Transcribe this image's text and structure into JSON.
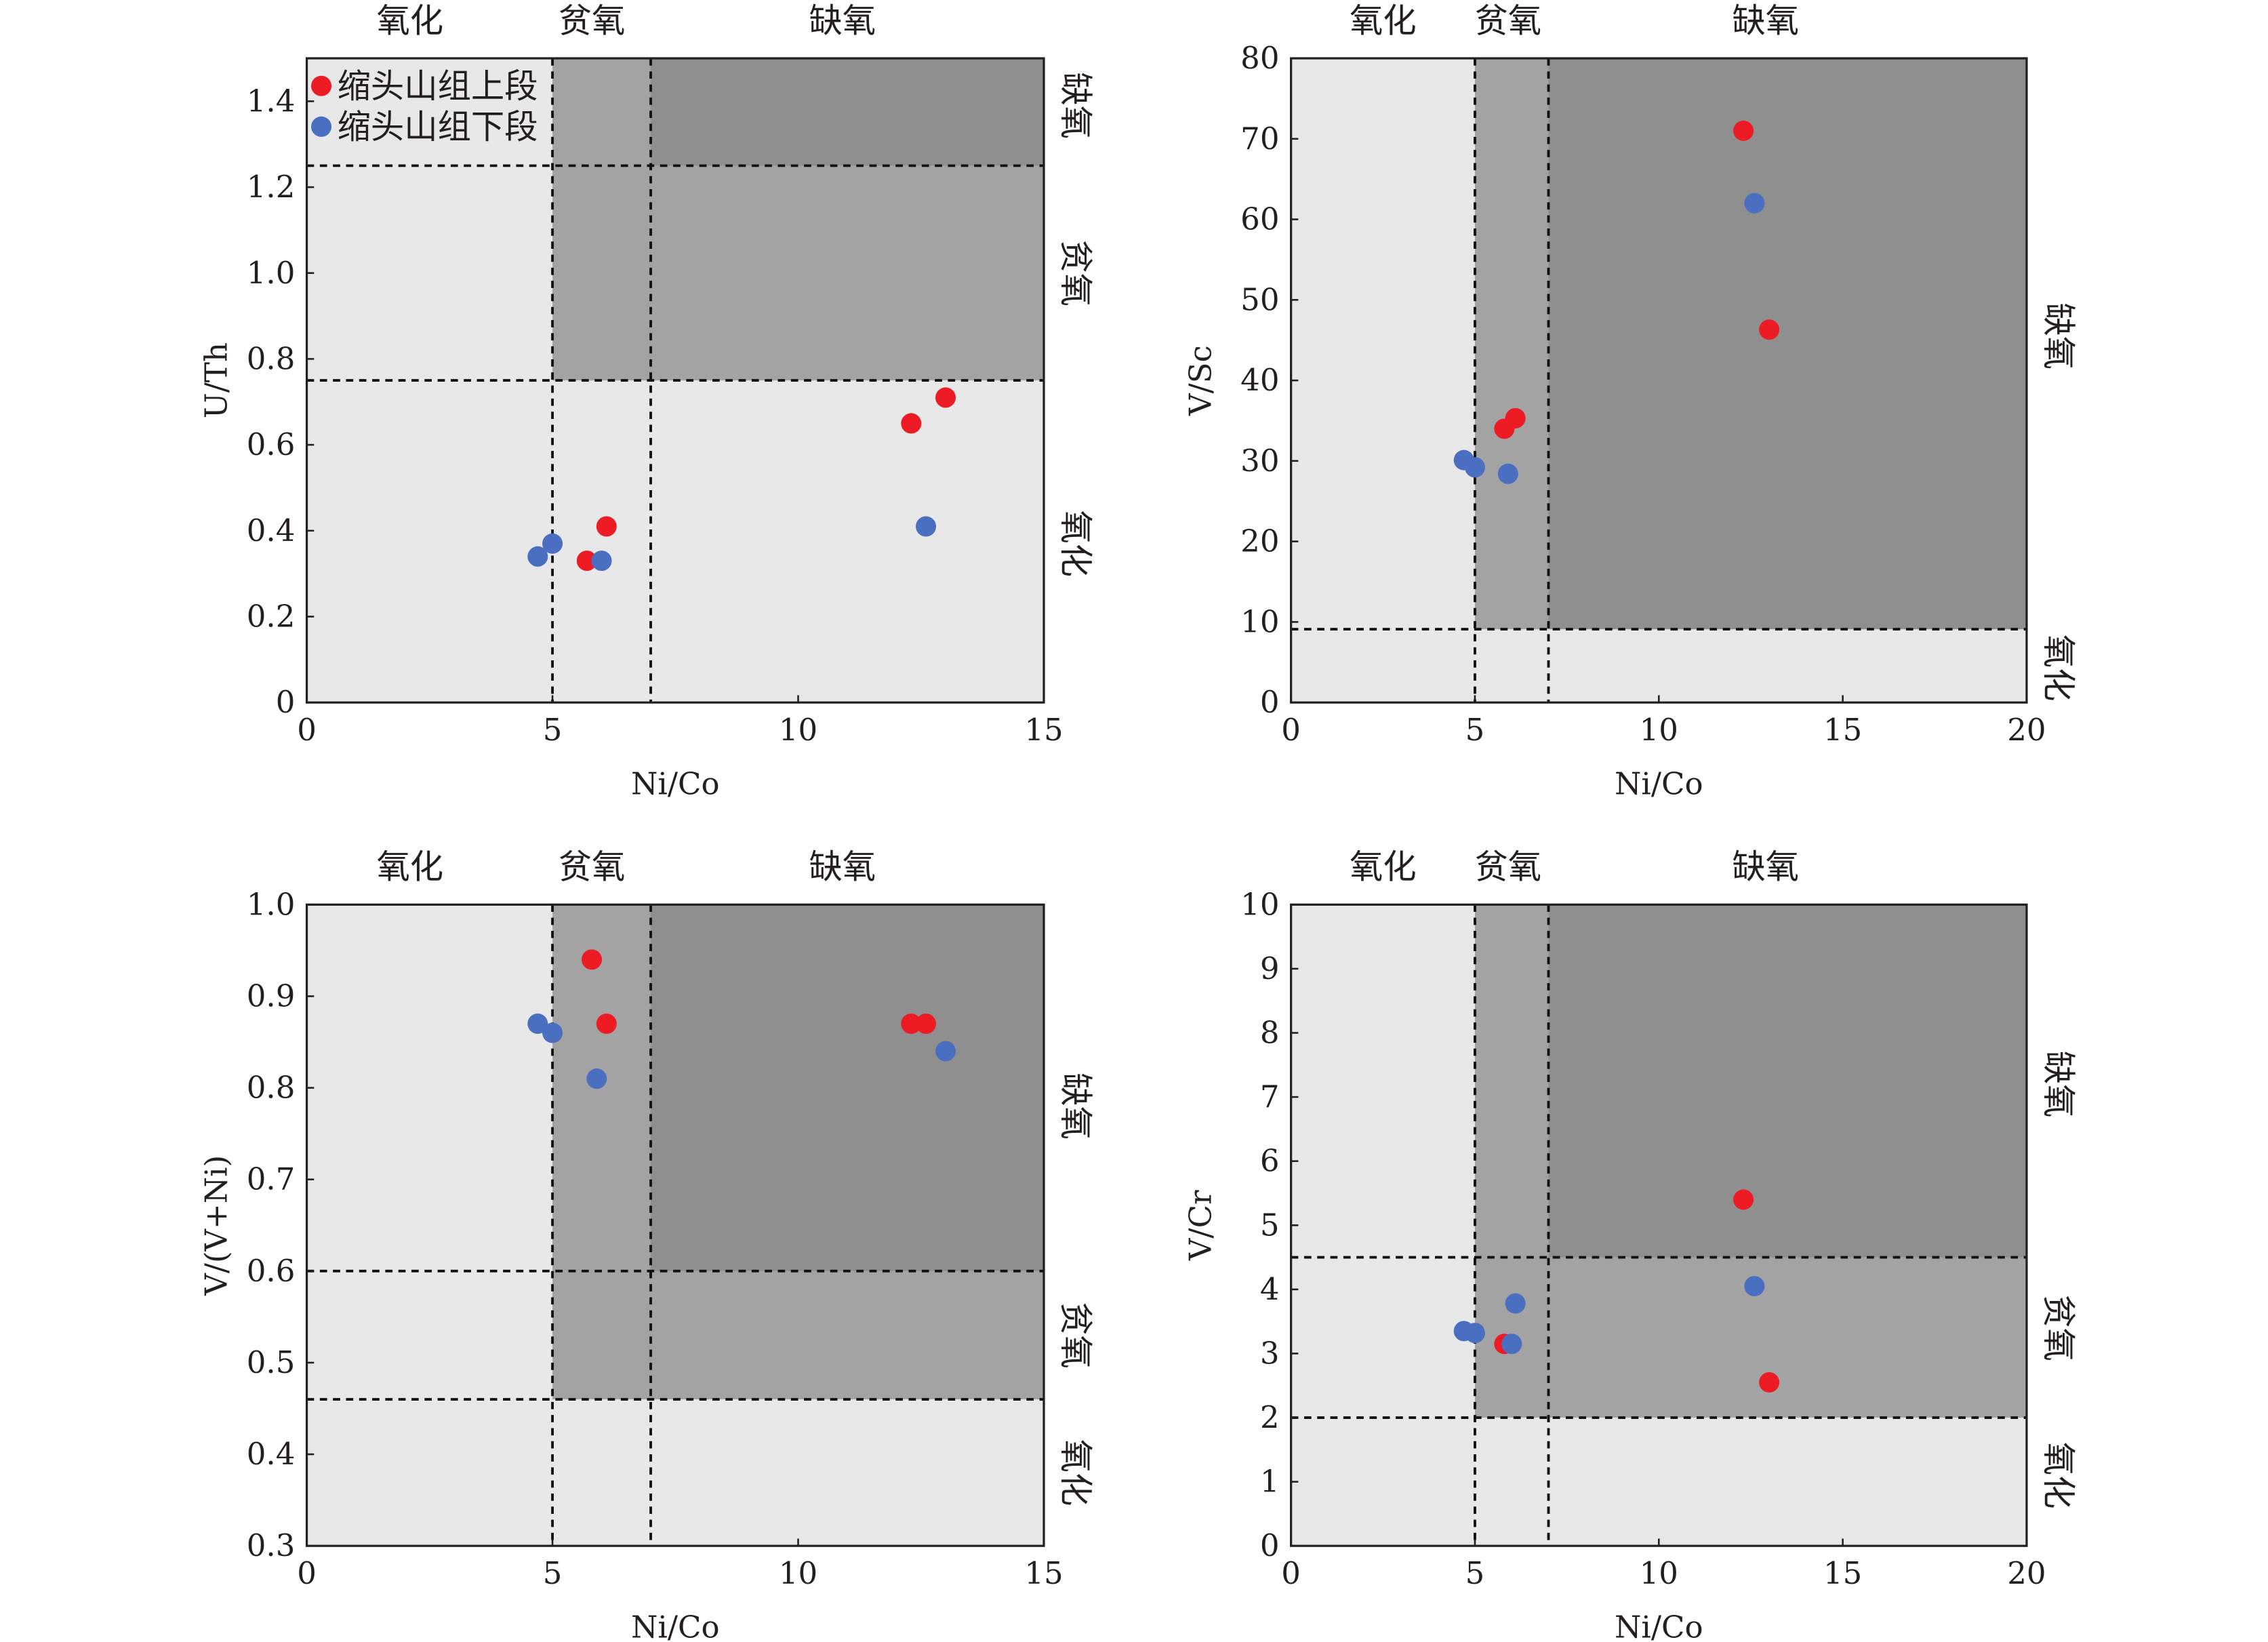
{
  "colors": {
    "light": "#e8e8e8",
    "medium": "#a3a3a3",
    "dark": "#8f8f8f",
    "red": "#ed1c24",
    "blue": "#4a6ec0"
  },
  "legend": [
    {
      "label": "缩头山组上段",
      "color": "#ed1c24"
    },
    {
      "label": "缩头山组下段",
      "color": "#4a6ec0"
    }
  ],
  "chart_data": [
    {
      "type": "scatter",
      "xlabel": "Ni/Co",
      "ylabel": "U/Th",
      "xlim": [
        0,
        15
      ],
      "ylim": [
        0,
        1.5
      ],
      "xticks": [
        0,
        5,
        10,
        15
      ],
      "yticks": [
        0,
        0.2,
        0.4,
        0.6,
        0.8,
        1.0,
        1.2,
        1.4
      ],
      "ytick_labels": [
        "0",
        "0.2",
        "0.4",
        "0.6",
        "0.8",
        "1.0",
        "1.2",
        "1.4"
      ],
      "vlines": [
        5,
        7
      ],
      "hlines": [
        0.75,
        1.25
      ],
      "zones": [
        {
          "x": [
            5,
            15
          ],
          "y": [
            0.75,
            1.5
          ],
          "shade": "medium"
        },
        {
          "x": [
            7,
            15
          ],
          "y": [
            1.25,
            1.5
          ],
          "shade": "dark"
        }
      ],
      "top_labels": [
        {
          "text": "氧化",
          "x": 2.1
        },
        {
          "text": "贫氧",
          "x": 5.8
        },
        {
          "text": "缺氧",
          "x": 10.9
        }
      ],
      "right_labels": [
        {
          "text": "缺氧",
          "y": 1.39
        },
        {
          "text": "贫氧",
          "y": 1.0
        },
        {
          "text": "氧化",
          "y": 0.37
        }
      ],
      "show_legend": true,
      "series": [
        {
          "name": "缩头山组上段",
          "color": "red",
          "points": [
            [
              5.7,
              0.33
            ],
            [
              6.1,
              0.41
            ],
            [
              12.3,
              0.65
            ],
            [
              13.0,
              0.71
            ]
          ]
        },
        {
          "name": "缩头山组下段",
          "color": "blue",
          "points": [
            [
              4.7,
              0.34
            ],
            [
              5.0,
              0.37
            ],
            [
              6.0,
              0.33
            ],
            [
              12.6,
              0.41
            ]
          ]
        }
      ]
    },
    {
      "type": "scatter",
      "xlabel": "Ni/Co",
      "ylabel": "V/Sc",
      "xlim": [
        0,
        20
      ],
      "ylim": [
        0,
        80
      ],
      "xticks": [
        0,
        5,
        10,
        15,
        20
      ],
      "yticks": [
        0,
        10,
        20,
        30,
        40,
        50,
        60,
        70,
        80
      ],
      "ytick_labels": [
        "0",
        "10",
        "20",
        "30",
        "40",
        "50",
        "60",
        "70",
        "80"
      ],
      "vlines": [
        5,
        7
      ],
      "hlines": [
        9.1
      ],
      "zones": [
        {
          "x": [
            5,
            20
          ],
          "y": [
            9.1,
            80
          ],
          "shade": "medium"
        },
        {
          "x": [
            7,
            20
          ],
          "y": [
            9.1,
            80
          ],
          "shade": "dark"
        }
      ],
      "top_labels": [
        {
          "text": "氧化",
          "x": 2.5
        },
        {
          "text": "贫氧",
          "x": 5.9
        },
        {
          "text": "缺氧",
          "x": 12.9
        }
      ],
      "right_labels": [
        {
          "text": "缺氧",
          "y": 45.5
        },
        {
          "text": "氧化",
          "y": 4.3
        }
      ],
      "show_legend": false,
      "series": [
        {
          "name": "缩头山组上段",
          "color": "red",
          "points": [
            [
              12.3,
              71
            ],
            [
              13.0,
              46.3
            ],
            [
              5.8,
              34
            ],
            [
              6.1,
              35.3
            ]
          ]
        },
        {
          "name": "缩头山组下段",
          "color": "blue",
          "points": [
            [
              12.6,
              62
            ],
            [
              4.7,
              30.1
            ],
            [
              5.0,
              29.2
            ],
            [
              5.9,
              28.4
            ]
          ]
        }
      ]
    },
    {
      "type": "scatter",
      "xlabel": "Ni/Co",
      "ylabel": "V/(V+Ni)",
      "xlim": [
        0,
        15
      ],
      "ylim": [
        0.3,
        1.0
      ],
      "xticks": [
        0,
        5,
        10,
        15
      ],
      "yticks": [
        0.3,
        0.4,
        0.5,
        0.6,
        0.7,
        0.8,
        0.9,
        1.0
      ],
      "ytick_labels": [
        "0.3",
        "0.4",
        "0.5",
        "0.6",
        "0.7",
        "0.8",
        "0.9",
        "1.0"
      ],
      "vlines": [
        5,
        7
      ],
      "hlines": [
        0.6,
        0.46
      ],
      "zones": [
        {
          "x": [
            5,
            15
          ],
          "y": [
            0.46,
            1.0
          ],
          "shade": "medium"
        },
        {
          "x": [
            7,
            15
          ],
          "y": [
            0.6,
            1.0
          ],
          "shade": "dark"
        }
      ],
      "top_labels": [
        {
          "text": "氧化",
          "x": 2.1
        },
        {
          "text": "贫氧",
          "x": 5.8
        },
        {
          "text": "缺氧",
          "x": 10.9
        }
      ],
      "right_labels": [
        {
          "text": "缺氧",
          "y": 0.78
        },
        {
          "text": "贫氧",
          "y": 0.53
        },
        {
          "text": "氧化",
          "y": 0.38
        }
      ],
      "show_legend": false,
      "series": [
        {
          "name": "缩头山组上段",
          "color": "red",
          "points": [
            [
              5.8,
              0.94
            ],
            [
              6.1,
              0.87
            ],
            [
              12.3,
              0.87
            ],
            [
              12.6,
              0.87
            ]
          ]
        },
        {
          "name": "缩头山组下段",
          "color": "blue",
          "points": [
            [
              4.7,
              0.87
            ],
            [
              5.0,
              0.86
            ],
            [
              5.9,
              0.81
            ],
            [
              13.0,
              0.84
            ]
          ]
        }
      ]
    },
    {
      "type": "scatter",
      "xlabel": "Ni/Co",
      "ylabel": "V/Cr",
      "xlim": [
        0,
        20
      ],
      "ylim": [
        0,
        10
      ],
      "xticks": [
        0,
        5,
        10,
        15,
        20
      ],
      "yticks": [
        0,
        1,
        2,
        3,
        4,
        5,
        6,
        7,
        8,
        9,
        10
      ],
      "ytick_labels": [
        "0",
        "1",
        "2",
        "3",
        "4",
        "5",
        "6",
        "7",
        "8",
        "9",
        "10"
      ],
      "vlines": [
        5,
        7
      ],
      "hlines": [
        4.5,
        2
      ],
      "zones": [
        {
          "x": [
            5,
            20
          ],
          "y": [
            2,
            10
          ],
          "shade": "medium"
        },
        {
          "x": [
            7,
            20
          ],
          "y": [
            4.5,
            10
          ],
          "shade": "dark"
        }
      ],
      "top_labels": [
        {
          "text": "氧化",
          "x": 2.5
        },
        {
          "text": "贫氧",
          "x": 5.9
        },
        {
          "text": "缺氧",
          "x": 12.9
        }
      ],
      "right_labels": [
        {
          "text": "缺氧",
          "y": 7.2
        },
        {
          "text": "贫氧",
          "y": 3.4
        },
        {
          "text": "氧化",
          "y": 1.1
        }
      ],
      "show_legend": false,
      "series": [
        {
          "name": "缩头山组上段",
          "color": "red",
          "points": [
            [
              12.3,
              5.4
            ],
            [
              13.0,
              2.55
            ],
            [
              5.8,
              3.15
            ]
          ]
        },
        {
          "name": "缩头山组下段",
          "color": "blue",
          "points": [
            [
              12.6,
              4.05
            ],
            [
              4.7,
              3.35
            ],
            [
              5.0,
              3.32
            ],
            [
              6.1,
              3.78
            ],
            [
              6.0,
              3.15
            ]
          ]
        }
      ]
    }
  ]
}
